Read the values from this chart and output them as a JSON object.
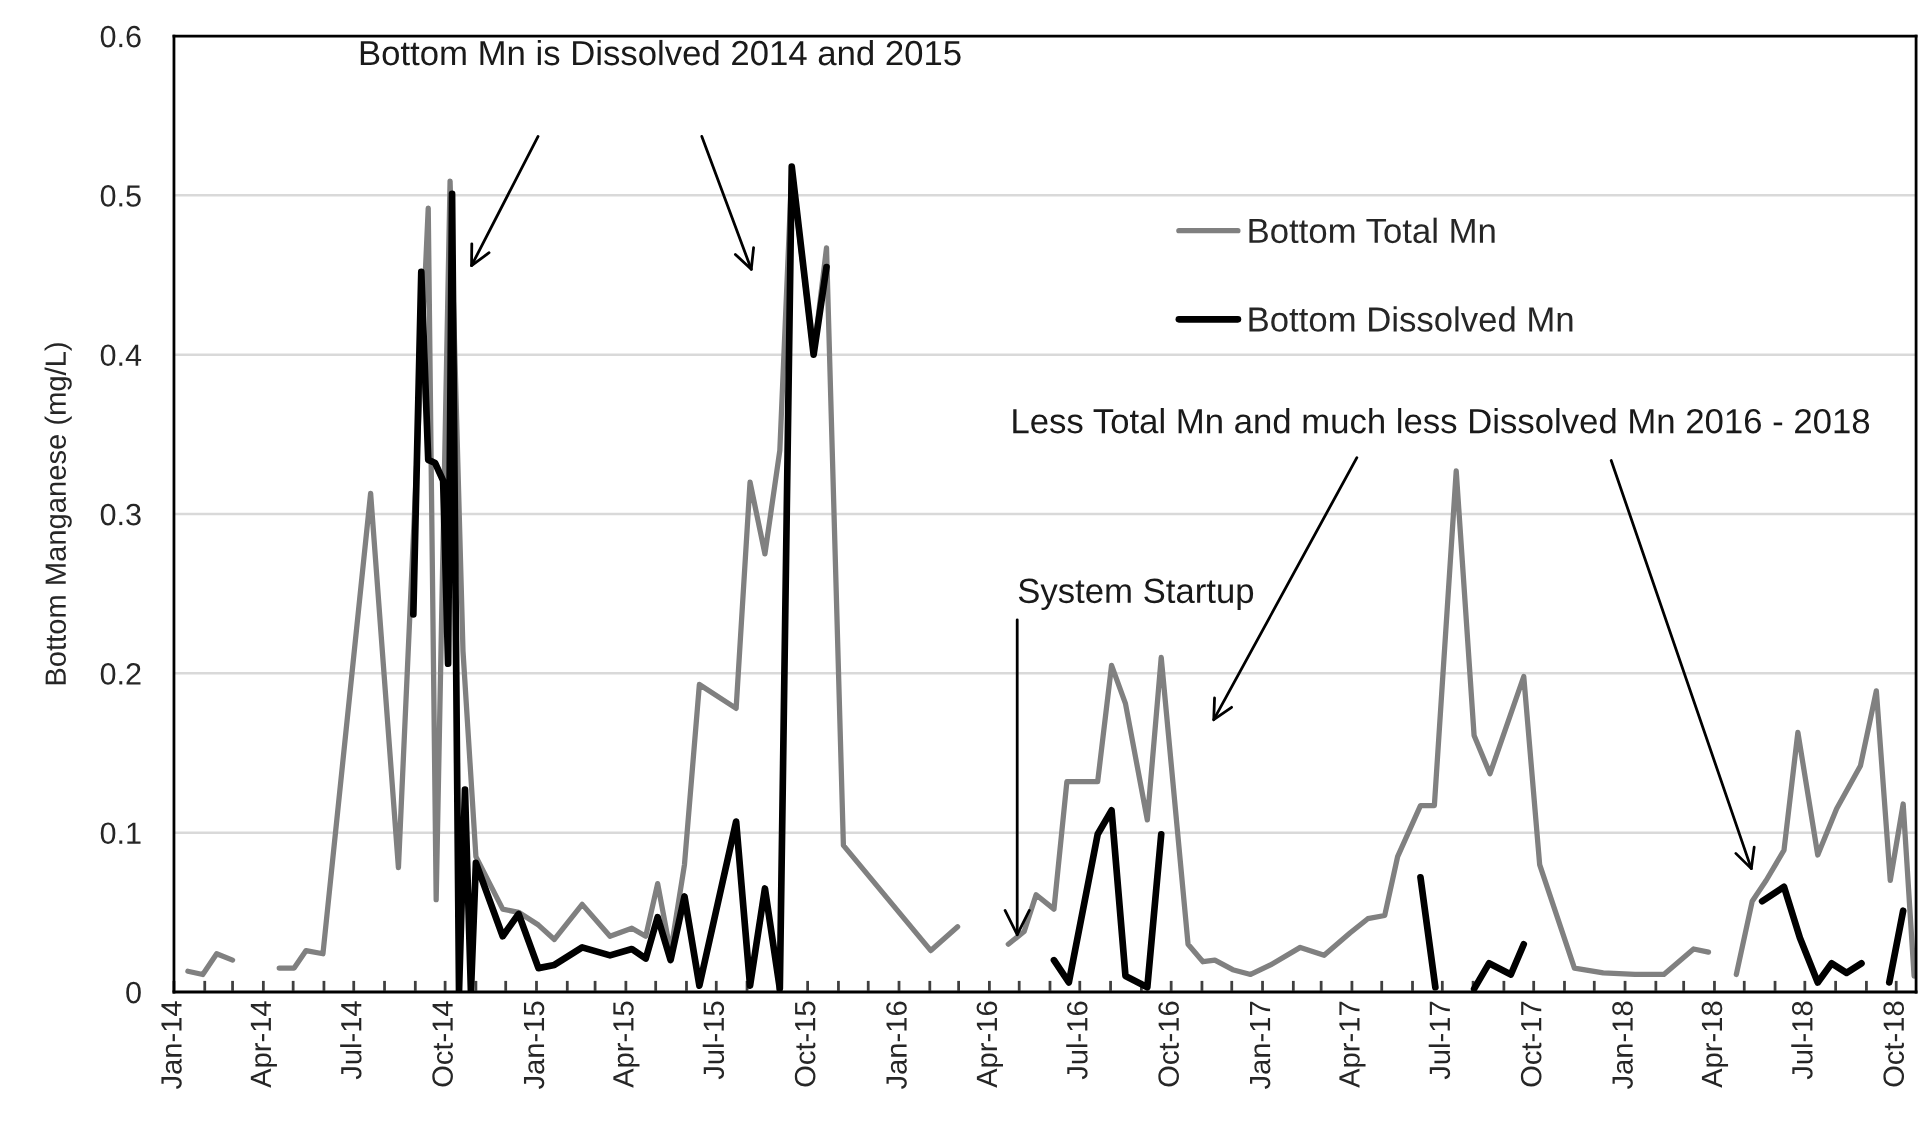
{
  "chart_data": {
    "type": "line",
    "ylabel": "Bottom Manganese (mg/L)",
    "annotations": [
      "Bottom Mn is Dissolved 2014 and 2015",
      "Less Total Mn and much less Dissolved Mn 2016 - 2018",
      {
        "text": "System Startup",
        "x": "2016-04-29",
        "y": 0.034
      }
    ],
    "series": [
      {
        "name": "Bottom Total Mn",
        "color": "#808080",
        "x": [
          "2014-01-15",
          "2014-01-30",
          "2014-02-13",
          "2014-03-01",
          "2014-03-20",
          "2014-04-17",
          "2014-05-02",
          "2014-05-14",
          "2014-05-31",
          "2014-07-18",
          "2014-08-15",
          "2014-09-14",
          "2014-09-22",
          "2014-10-06",
          "2014-10-19",
          "2014-11-01",
          "2014-11-28",
          "2014-12-14",
          "2015-01-03",
          "2015-01-19",
          "2015-02-16",
          "2015-03-16",
          "2015-04-07",
          "2015-04-21",
          "2015-05-03",
          "2015-05-16",
          "2015-05-30",
          "2015-06-14",
          "2015-07-21",
          "2015-08-04",
          "2015-08-19",
          "2015-09-03",
          "2015-09-15",
          "2015-10-07",
          "2015-10-20",
          "2015-11-06",
          "2016-02-02",
          "2016-02-29",
          "2016-03-25",
          "2016-04-20",
          "2016-05-06",
          "2016-05-18",
          "2016-06-05",
          "2016-06-18",
          "2016-07-19",
          "2016-08-02",
          "2016-08-16",
          "2016-09-07",
          "2016-09-21",
          "2016-10-18",
          "2016-11-02",
          "2016-11-14",
          "2016-12-02",
          "2016-12-20",
          "2017-01-09",
          "2017-02-08",
          "2017-03-04",
          "2017-03-30",
          "2017-04-17",
          "2017-05-04",
          "2017-05-17",
          "2017-06-09",
          "2017-06-23",
          "2017-07-15",
          "2017-08-02",
          "2017-08-18",
          "2017-09-21",
          "2017-10-07",
          "2017-11-11",
          "2017-12-10",
          "2018-01-11",
          "2018-02-09",
          "2018-03-11",
          "2018-03-26",
          "2018-04-08",
          "2018-04-23",
          "2018-05-09",
          "2018-05-23",
          "2018-06-10",
          "2018-06-24",
          "2018-07-14",
          "2018-08-02",
          "2018-08-26",
          "2018-09-11",
          "2018-09-25",
          "2018-10-08",
          "2018-10-19"
        ],
        "values": [
          0.013,
          0.011,
          0.024,
          0.02,
          null,
          0.015,
          0.015,
          0.026,
          0.024,
          0.313,
          0.078,
          0.492,
          0.058,
          0.509,
          0.214,
          0.085,
          0.052,
          0.05,
          0.042,
          0.033,
          0.055,
          0.035,
          0.04,
          0.035,
          0.068,
          0.025,
          0.08,
          0.193,
          0.178,
          0.32,
          0.275,
          0.34,
          0.515,
          0.4,
          0.467,
          0.092,
          0.026,
          0.041,
          null,
          0.03,
          0.038,
          0.061,
          0.052,
          0.132,
          0.132,
          0.205,
          0.181,
          0.108,
          0.21,
          0.03,
          0.019,
          0.02,
          0.014,
          0.011,
          0.017,
          0.028,
          0.023,
          0.037,
          0.046,
          0.048,
          0.085,
          0.117,
          0.117,
          0.327,
          0.161,
          0.137,
          0.198,
          0.08,
          0.015,
          0.012,
          0.011,
          0.011,
          0.027,
          0.025,
          null,
          0.011,
          0.057,
          0.07,
          0.089,
          0.163,
          0.086,
          0.115,
          0.142,
          0.189,
          0.07,
          0.118,
          0.01
        ]
      },
      {
        "name": "Bottom Dissolved Mn",
        "color": "#000000",
        "x": [
          "2014-08-30",
          "2014-09-07",
          "2014-09-14",
          "2014-09-21",
          "2014-09-29",
          "2014-10-04",
          "2014-10-08",
          "2014-10-15",
          "2014-10-21",
          "2014-10-27",
          "2014-11-01",
          "2014-11-28",
          "2014-12-14",
          "2015-01-03",
          "2015-01-19",
          "2015-02-16",
          "2015-03-16",
          "2015-04-07",
          "2015-04-21",
          "2015-05-03",
          "2015-05-16",
          "2015-05-30",
          "2015-06-14",
          "2015-07-21",
          "2015-08-04",
          "2015-08-19",
          "2015-09-03",
          "2015-09-15",
          "2015-10-07",
          "2015-10-20",
          "2016-01-01",
          "2016-06-05",
          "2016-06-20",
          "2016-07-19",
          "2016-08-02",
          "2016-08-16",
          "2016-09-07",
          "2016-09-21",
          "2017-01-01",
          "2017-06-09",
          "2017-06-24",
          "2017-07-05",
          "2017-08-02",
          "2017-08-17",
          "2017-09-08",
          "2017-09-21",
          "2018-01-01",
          "2018-05-19",
          "2018-06-10",
          "2018-06-26",
          "2018-07-14",
          "2018-07-28",
          "2018-08-12",
          "2018-08-27",
          "2018-09-05",
          "2018-09-24",
          "2018-10-08"
        ],
        "values": [
          0.237,
          0.452,
          0.334,
          0.332,
          0.321,
          0.206,
          0.501,
          0,
          0.127,
          0,
          0.081,
          0.035,
          0.049,
          0.015,
          0.017,
          0.028,
          0.023,
          0.027,
          0.021,
          0.047,
          0.02,
          0.06,
          0.004,
          0.107,
          0.004,
          0.065,
          0.002,
          0.518,
          0.4,
          0.455,
          null,
          0.02,
          0.006,
          0.099,
          0.114,
          0.01,
          0.003,
          0.099,
          null,
          0.072,
          0.003,
          null,
          0.002,
          0.018,
          0.011,
          0.03,
          null,
          0.057,
          0.066,
          0.034,
          0.006,
          0.018,
          0.012,
          0.018,
          null,
          0.006,
          0.051
        ]
      }
    ],
    "xlim": [
      "2014-01-01",
      "2018-10-21"
    ],
    "xticks": [
      {
        "value": "2014-01",
        "label": "Jan-14"
      },
      {
        "value": "2014-02",
        "label": null
      },
      {
        "value": "2014-03",
        "label": null
      },
      {
        "value": "2014-04",
        "label": "Apr-14"
      },
      {
        "value": "2014-05",
        "label": null
      },
      {
        "value": "2014-06",
        "label": null
      },
      {
        "value": "2014-07",
        "label": "Jul-14"
      },
      {
        "value": "2014-08",
        "label": null
      },
      {
        "value": "2014-09",
        "label": null
      },
      {
        "value": "2014-10",
        "label": "Oct-14"
      },
      {
        "value": "2014-11",
        "label": null
      },
      {
        "value": "2014-12",
        "label": null
      },
      {
        "value": "2015-01",
        "label": "Jan-15"
      },
      {
        "value": "2015-02",
        "label": null
      },
      {
        "value": "2015-03",
        "label": null
      },
      {
        "value": "2015-04",
        "label": "Apr-15"
      },
      {
        "value": "2015-05",
        "label": null
      },
      {
        "value": "2015-06",
        "label": null
      },
      {
        "value": "2015-07",
        "label": "Jul-15"
      },
      {
        "value": "2015-08",
        "label": null
      },
      {
        "value": "2015-09",
        "label": null
      },
      {
        "value": "2015-10",
        "label": "Oct-15"
      },
      {
        "value": "2015-11",
        "label": null
      },
      {
        "value": "2015-12",
        "label": null
      },
      {
        "value": "2016-01",
        "label": "Jan-16"
      },
      {
        "value": "2016-02",
        "label": null
      },
      {
        "value": "2016-03",
        "label": null
      },
      {
        "value": "2016-04",
        "label": "Apr-16"
      },
      {
        "value": "2016-05",
        "label": null
      },
      {
        "value": "2016-06",
        "label": null
      },
      {
        "value": "2016-07",
        "label": "Jul-16"
      },
      {
        "value": "2016-08",
        "label": null
      },
      {
        "value": "2016-09",
        "label": null
      },
      {
        "value": "2016-10",
        "label": "Oct-16"
      },
      {
        "value": "2016-11",
        "label": null
      },
      {
        "value": "2016-12",
        "label": null
      },
      {
        "value": "2017-01",
        "label": "Jan-17"
      },
      {
        "value": "2017-02",
        "label": null
      },
      {
        "value": "2017-03",
        "label": null
      },
      {
        "value": "2017-04",
        "label": "Apr-17"
      },
      {
        "value": "2017-05",
        "label": null
      },
      {
        "value": "2017-06",
        "label": null
      },
      {
        "value": "2017-07",
        "label": "Jul-17"
      },
      {
        "value": "2017-08",
        "label": null
      },
      {
        "value": "2017-09",
        "label": null
      },
      {
        "value": "2017-10",
        "label": "Oct-17"
      },
      {
        "value": "2017-11",
        "label": null
      },
      {
        "value": "2017-12",
        "label": null
      },
      {
        "value": "2018-01",
        "label": "Jan-18"
      },
      {
        "value": "2018-02",
        "label": null
      },
      {
        "value": "2018-03",
        "label": null
      },
      {
        "value": "2018-04",
        "label": "Apr-18"
      },
      {
        "value": "2018-05",
        "label": null
      },
      {
        "value": "2018-06",
        "label": null
      },
      {
        "value": "2018-07",
        "label": "Jul-18"
      },
      {
        "value": "2018-08",
        "label": null
      },
      {
        "value": "2018-09",
        "label": null
      },
      {
        "value": "2018-10",
        "label": "Oct-18"
      }
    ],
    "ylim": [
      0,
      0.6
    ],
    "yticks": [
      0,
      0.1,
      0.2,
      0.3,
      0.4,
      0.5,
      0.6
    ],
    "grid": "y",
    "legend": "top right"
  }
}
